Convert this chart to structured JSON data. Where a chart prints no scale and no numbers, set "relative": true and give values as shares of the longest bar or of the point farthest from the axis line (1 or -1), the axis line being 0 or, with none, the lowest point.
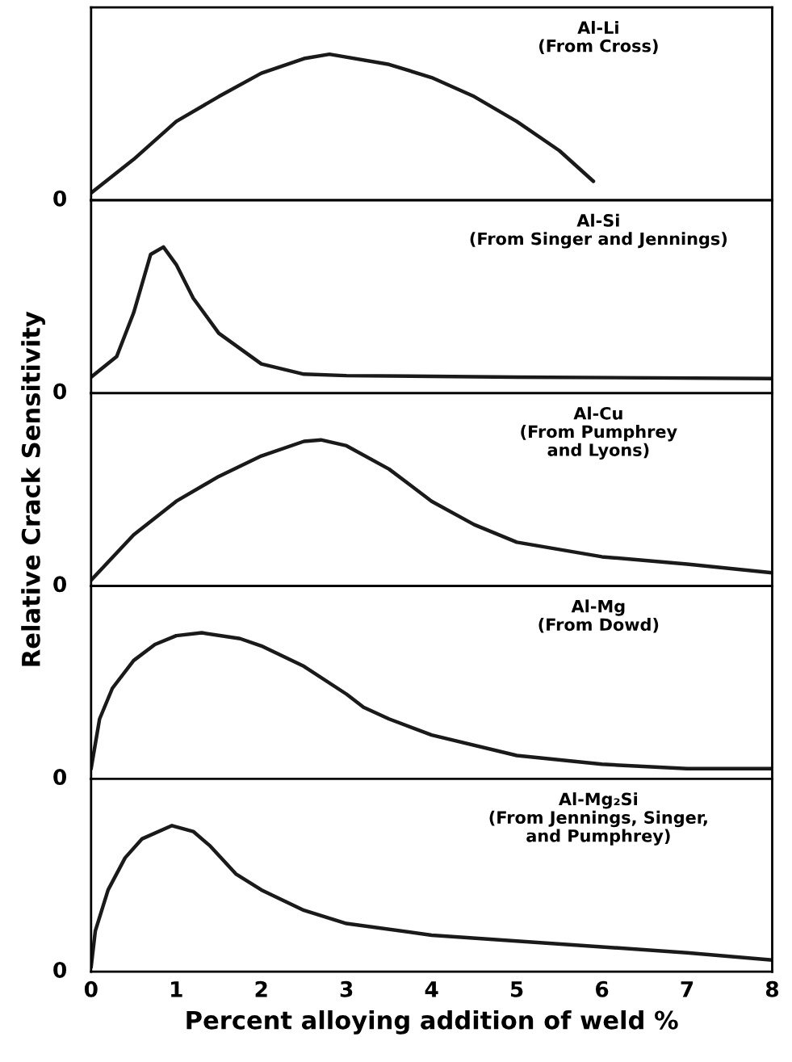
{
  "chart_data": [
    {
      "type": "line",
      "title": "Al-Li\n(From Cross)",
      "relative": true,
      "x": [
        0,
        0.5,
        1,
        1.5,
        2,
        2.5,
        2.8,
        3.5,
        4,
        4.5,
        5,
        5.5,
        5.9
      ],
      "series": [
        {
          "color": "#1a1a1a",
          "values": [
            0.05,
            0.28,
            0.54,
            0.71,
            0.87,
            0.97,
            1.0,
            0.93,
            0.84,
            0.71,
            0.54,
            0.34,
            0.13
          ]
        }
      ],
      "xlim": [
        0,
        8
      ],
      "xticks": [
        0,
        1,
        2,
        3,
        4,
        5,
        6,
        7,
        8
      ],
      "tick_labels": false,
      "annotations": [
        "0"
      ]
    },
    {
      "type": "line",
      "title": "Al-Si\n(From Singer and Jennings)",
      "relative": true,
      "x": [
        0,
        0.3,
        0.5,
        0.7,
        0.85,
        1.0,
        1.2,
        1.5,
        2,
        2.5,
        3,
        5,
        8
      ],
      "series": [
        {
          "color": "#1a1a1a",
          "values": [
            0.11,
            0.25,
            0.55,
            0.95,
            1.0,
            0.88,
            0.65,
            0.41,
            0.2,
            0.13,
            0.12,
            0.11,
            0.1
          ]
        }
      ],
      "xlim": [
        0,
        8
      ],
      "xticks": [
        0,
        1,
        2,
        3,
        4,
        5,
        6,
        7,
        8
      ],
      "tick_labels": false,
      "annotations": [
        "0"
      ]
    },
    {
      "type": "line",
      "title": "Al-Cu\n(From Pumphrey\nand Lyons)",
      "ylabel": "Relative Crack Sensitivity",
      "relative": true,
      "x": [
        0,
        0.5,
        1,
        1.5,
        2,
        2.5,
        2.7,
        3,
        3.5,
        4,
        4.5,
        5,
        6,
        7,
        8
      ],
      "series": [
        {
          "color": "#1a1a1a",
          "values": [
            0.04,
            0.35,
            0.58,
            0.75,
            0.89,
            0.99,
            1.0,
            0.96,
            0.8,
            0.58,
            0.42,
            0.3,
            0.2,
            0.15,
            0.09
          ]
        }
      ],
      "xlim": [
        0,
        8
      ],
      "xticks": [
        0,
        1,
        2,
        3,
        4,
        5,
        6,
        7,
        8
      ],
      "tick_labels": false,
      "annotations": [
        "0"
      ]
    },
    {
      "type": "line",
      "title": "Al-Mg\n(From Dowd)",
      "relative": true,
      "x": [
        0,
        0.1,
        0.25,
        0.5,
        0.75,
        1,
        1.3,
        1.75,
        2,
        2.5,
        3,
        3.2,
        3.5,
        4,
        5,
        6,
        7,
        8
      ],
      "series": [
        {
          "color": "#1a1a1a",
          "values": [
            0.07,
            0.41,
            0.62,
            0.81,
            0.92,
            0.98,
            1.0,
            0.96,
            0.91,
            0.77,
            0.58,
            0.49,
            0.41,
            0.3,
            0.16,
            0.1,
            0.07,
            0.07
          ]
        }
      ],
      "xlim": [
        0,
        8
      ],
      "xticks": [
        0,
        1,
        2,
        3,
        4,
        5,
        6,
        7,
        8
      ],
      "tick_labels": false,
      "annotations": [
        "0"
      ]
    },
    {
      "type": "line",
      "title": "Al-Mg₂Si\n(From Jennings, Singer,\nand Pumphrey)",
      "xlabel": "Percent alloying addition of weld %",
      "relative": true,
      "x": [
        0,
        0.05,
        0.2,
        0.4,
        0.6,
        0.95,
        1.2,
        1.4,
        1.7,
        2,
        2.5,
        3,
        4,
        5,
        6,
        7,
        8
      ],
      "series": [
        {
          "color": "#1a1a1a",
          "values": [
            0.03,
            0.28,
            0.56,
            0.78,
            0.91,
            1.0,
            0.96,
            0.86,
            0.67,
            0.56,
            0.42,
            0.33,
            0.25,
            0.21,
            0.17,
            0.13,
            0.08
          ]
        }
      ],
      "xlim": [
        0,
        8
      ],
      "xticks": [
        0,
        1,
        2,
        3,
        4,
        5,
        6,
        7,
        8
      ],
      "tick_labels": "x",
      "annotations": [
        "0"
      ]
    }
  ]
}
